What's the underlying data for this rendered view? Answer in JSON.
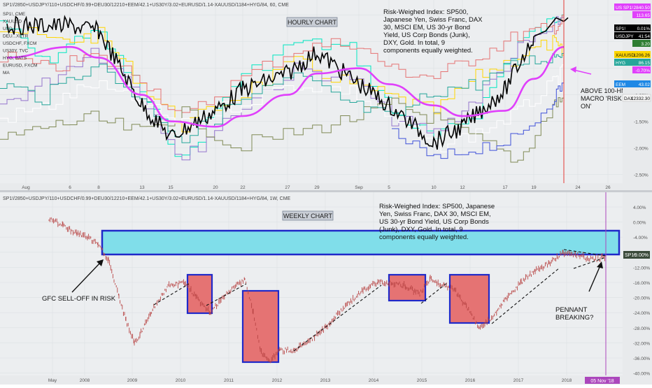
{
  "top": {
    "header": "SP1!/2850+USDJPY/110+USDCHF/0.99+DEU30/12210+EEM/42.1+US30Y/3.02+EURUSD/1.14-XAUUSD/1184+HYG/84, 60, CME",
    "legend": [
      "SP1!, CME",
      "XAUUSD",
      "USD...",
      "DEU...XETR",
      "USDCHF, FXCM",
      "US30Y, TVC",
      "HYG, BATS",
      "EURUSD, FXCM",
      "MA"
    ],
    "chart_title": "HOURLY CHART",
    "annotation": "Risk-Weighed Index: SP500, Japanese Yen, Swiss Franc, DAX 30, MSCI EM, US 30-yr Bond Yield, US Corp Bonds (Junk), DXY, Gold. In total, 9 components equally weighted.",
    "callout": "ABOVE 100-HMA MACRO 'RISK ON'",
    "y_ticks": [
      "0.50%",
      "0.00%",
      "-0.50%",
      "-1.00%",
      "-1.50%",
      "-2.00%",
      "-2.50%"
    ],
    "x_ticks": [
      "Aug",
      "6",
      "8",
      "13",
      "15",
      "20",
      "22",
      "27",
      "29",
      "Sep",
      "5",
      "10",
      "12",
      "17",
      "19",
      "24",
      "26"
    ],
    "price_tags": [
      {
        "label": "US SP1!",
        "value": "2840.50",
        "color": "#e040fb"
      },
      {
        "label": "",
        "value": "113.65",
        "color": "#e040fb"
      },
      {
        "label": "SP1!",
        "value": "0.01%",
        "color": "#000000"
      },
      {
        "label": "USDJPY",
        "value": "41:54",
        "color": "#000000"
      },
      {
        "label": "",
        "value": "3.20",
        "color": "#2e7d32"
      },
      {
        "label": "XAUUSD",
        "value": "1206.26",
        "color": "#ffd600"
      },
      {
        "label": "HYG",
        "value": "86.15",
        "color": "#26a69a"
      },
      {
        "label": "",
        "value": "-0.70%",
        "color": "#e040fb"
      },
      {
        "label": "EEM",
        "value": "43.02",
        "color": "#1e88e5"
      },
      {
        "label": "DAX",
        "value": "12332.30",
        "color": "#ffffff"
      }
    ]
  },
  "bottom": {
    "header": "SP1!/2850+USDJPY/110+USDCHF/0.99+DEU30/12210+EEM/42.1+US30Y/3.02+EURUSD/1.14-XAUUSD/1184+HYG/84, 1W, CME",
    "chart_title": "WEEKLY CHART",
    "annotation": "Risk-Weighed Index: SP500, Japanese Yen, Swiss Franc, DAX 30, MSCI EM, US 30-yr Bond Yield, US Corp Bonds (Junk), DXY, Gold. In total, 9 components equally weighted.",
    "label_gfc": "GFC SELL-OFF IN RISK",
    "label_pennant": "PENNANT BREAKING?",
    "y_ticks": [
      "4.00%",
      "0.00%",
      "-4.00%",
      "-8.00%",
      "-12.00%",
      "-16.00%",
      "-20.00%",
      "-24.00%",
      "-28.00%",
      "-32.00%",
      "-36.00%",
      "-40.00%"
    ],
    "x_ticks": [
      "May",
      "2008",
      "2009",
      "2010",
      "2011",
      "2012",
      "2013",
      "2014",
      "2015",
      "2016",
      "2017",
      "2018"
    ],
    "date_tag": "05 Nov '18",
    "price_tag": {
      "label": "SP1!",
      "value": "-9.00%"
    }
  },
  "colors": {
    "magenta": "#e040fb",
    "cyan_box": "#80deea",
    "red_box": "#e57373",
    "blue": "#1f29c9",
    "candle": "#c04a4a"
  },
  "chart_data": [
    {
      "type": "line",
      "title": "HOURLY CHART",
      "x": [
        "Aug",
        "6",
        "8",
        "13",
        "15",
        "20",
        "22",
        "27",
        "29",
        "Sep",
        "5",
        "10",
        "12",
        "17",
        "19"
      ],
      "ylim": [
        -2.6,
        0.6
      ],
      "series": [
        {
          "name": "",
          "values": [
            0.3,
            0.3,
            0.2,
            -1.2,
            -1.8,
            -1.3,
            -0.9,
            -0.6,
            -0.2,
            -0.8,
            -1.2,
            -1.9,
            -1.6,
            -0.9,
            0.1
          ]
        },
        {
          "name": "MA",
          "values": [
            -0.3,
            -0.1,
            -0.3,
            -1.0,
            -1.5,
            -1.6,
            -1.4,
            -1.0,
            -0.6,
            -0.5,
            -0.8,
            -1.2,
            -1.4,
            -1.3,
            -0.7
          ]
        }
      ]
    },
    {
      "type": "line",
      "title": "WEEKLY CHART",
      "x": [
        "May",
        "2008",
        "2009",
        "2010",
        "2011",
        "2012",
        "2013",
        "2014",
        "2015",
        "2016",
        "2017",
        "2018"
      ],
      "ylim": [
        -41,
        6
      ],
      "series": [
        {
          "name": "",
          "values": [
            1,
            -2,
            -30,
            -18,
            -15,
            -36,
            -26,
            -16,
            -16,
            -26,
            -16,
            -9
          ]
        }
      ]
    }
  ]
}
